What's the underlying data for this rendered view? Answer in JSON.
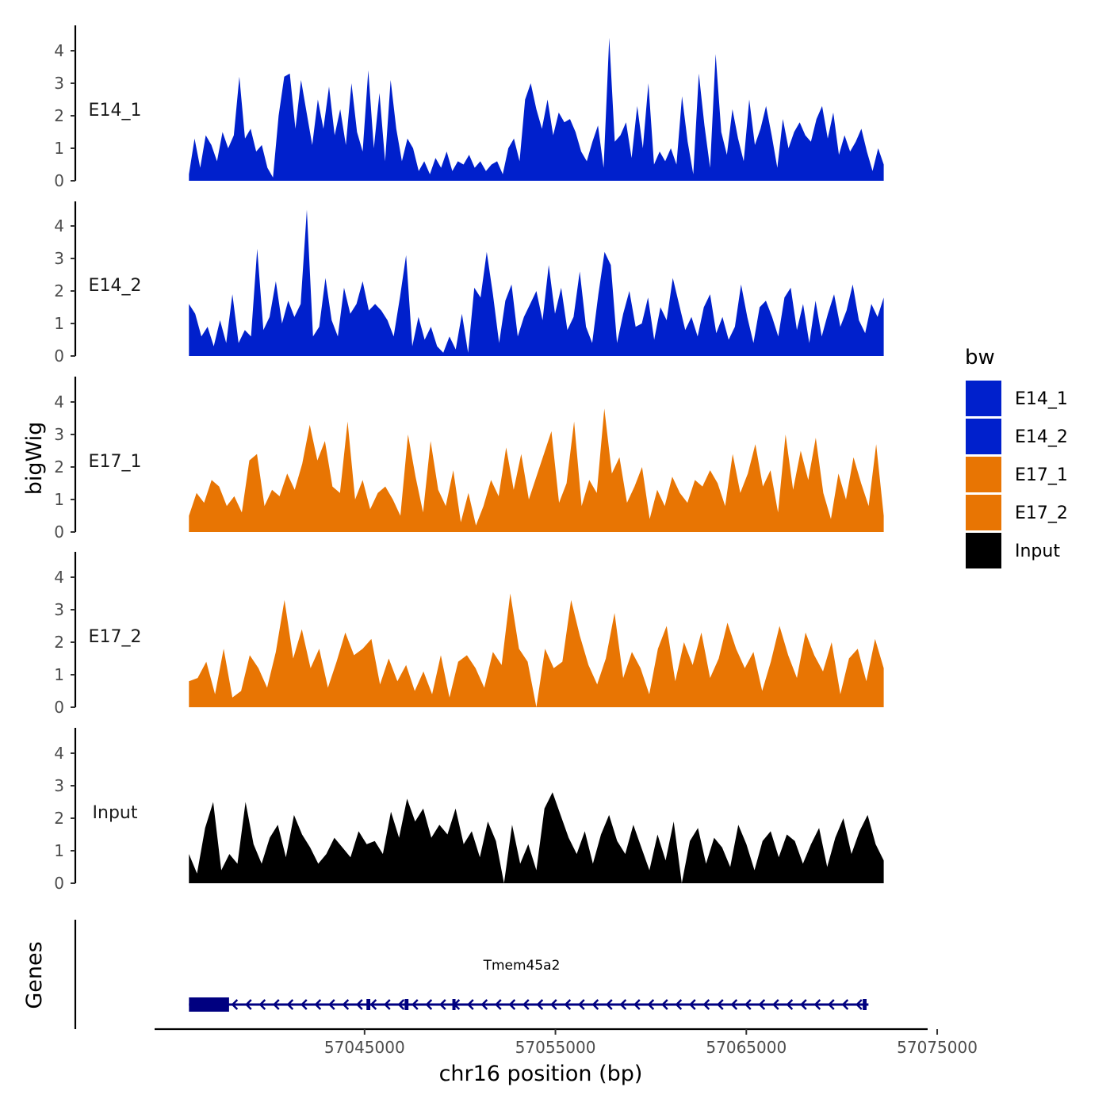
{
  "chart_data": {
    "type": "area",
    "title": "",
    "xlabel": "chr16 position (bp)",
    "ylabel": "bigWig",
    "genes_label": "Genes",
    "xlim": [
      57034000,
      57074500
    ],
    "x_ticks": [
      57045000,
      57055000,
      57065000,
      57075000
    ],
    "x_tick_labels": [
      "57045000",
      "57055000",
      "57065000",
      "57075000"
    ],
    "ylim": [
      0,
      4.8
    ],
    "y_ticks": [
      0,
      1,
      2,
      3,
      4
    ],
    "y_tick_labels": [
      "0",
      "1",
      "2",
      "3",
      "4"
    ],
    "region": {
      "start": 57035800,
      "end": 57072200
    },
    "legend": {
      "title": "bw",
      "entries": [
        {
          "label": "E14_1",
          "color": "#0020CC"
        },
        {
          "label": "E14_2",
          "color": "#0020CC"
        },
        {
          "label": "E17_1",
          "color": "#E87503"
        },
        {
          "label": "E17_2",
          "color": "#E87503"
        },
        {
          "label": "Input",
          "color": "#000000"
        }
      ]
    },
    "series": [
      {
        "name": "E14_1",
        "color": "#0020CC",
        "values": [
          0.2,
          1.3,
          0.4,
          1.4,
          1.1,
          0.6,
          1.5,
          1.0,
          1.4,
          3.2,
          1.3,
          1.6,
          0.9,
          1.1,
          0.4,
          0.1,
          2.0,
          3.2,
          3.3,
          1.6,
          3.1,
          2.1,
          1.1,
          2.5,
          1.6,
          2.9,
          1.4,
          2.2,
          1.1,
          3.0,
          1.5,
          0.9,
          3.4,
          1.0,
          2.7,
          0.6,
          3.1,
          1.6,
          0.6,
          1.3,
          1.0,
          0.3,
          0.6,
          0.2,
          0.7,
          0.4,
          0.9,
          0.3,
          0.6,
          0.5,
          0.8,
          0.4,
          0.6,
          0.3,
          0.5,
          0.6,
          0.2,
          1.0,
          1.3,
          0.6,
          2.5,
          3.0,
          2.2,
          1.6,
          2.5,
          1.4,
          2.1,
          1.8,
          1.9,
          1.5,
          0.9,
          0.6,
          1.2,
          1.7,
          0.4,
          4.4,
          1.2,
          1.4,
          1.8,
          0.7,
          2.3,
          1.0,
          3.0,
          0.5,
          0.9,
          0.6,
          1.0,
          0.5,
          2.6,
          1.2,
          0.2,
          3.3,
          1.7,
          0.4,
          3.9,
          1.5,
          0.8,
          2.2,
          1.3,
          0.6,
          2.5,
          1.1,
          1.6,
          2.3,
          1.4,
          0.4,
          1.9,
          1.0,
          1.5,
          1.8,
          1.4,
          1.2,
          1.9,
          2.3,
          1.3,
          2.1,
          0.8,
          1.4,
          0.9,
          1.2,
          1.6,
          0.9,
          0.3,
          1.0,
          0.5
        ]
      },
      {
        "name": "E14_2",
        "color": "#0020CC",
        "values": [
          1.6,
          1.3,
          0.6,
          0.9,
          0.3,
          1.1,
          0.4,
          1.9,
          0.4,
          0.8,
          0.6,
          3.3,
          0.8,
          1.2,
          2.3,
          1.0,
          1.7,
          1.2,
          1.6,
          4.5,
          0.6,
          0.9,
          2.4,
          1.1,
          0.6,
          2.1,
          1.3,
          1.6,
          2.3,
          1.4,
          1.6,
          1.4,
          1.1,
          0.6,
          1.8,
          3.1,
          0.3,
          1.2,
          0.5,
          0.9,
          0.3,
          0.1,
          0.6,
          0.2,
          1.3,
          0.1,
          2.1,
          1.8,
          3.2,
          1.9,
          0.4,
          1.7,
          2.2,
          0.6,
          1.2,
          1.6,
          2.0,
          1.1,
          2.8,
          1.3,
          2.1,
          0.8,
          1.2,
          2.6,
          0.9,
          0.4,
          1.9,
          3.2,
          2.8,
          0.4,
          1.3,
          2.0,
          0.9,
          1.0,
          1.8,
          0.5,
          1.5,
          1.1,
          2.4,
          1.6,
          0.8,
          1.2,
          0.6,
          1.5,
          1.9,
          0.7,
          1.2,
          0.5,
          0.9,
          2.2,
          1.2,
          0.4,
          1.5,
          1.7,
          1.2,
          0.6,
          1.8,
          2.1,
          0.8,
          1.6,
          0.4,
          1.7,
          0.6,
          1.3,
          1.9,
          0.9,
          1.4,
          2.2,
          1.1,
          0.7,
          1.6,
          1.2,
          1.8
        ]
      },
      {
        "name": "E17_1",
        "color": "#E87503",
        "values": [
          0.5,
          1.2,
          0.9,
          1.6,
          1.4,
          0.8,
          1.1,
          0.6,
          2.2,
          2.4,
          0.8,
          1.3,
          1.1,
          1.8,
          1.3,
          2.1,
          3.3,
          2.2,
          2.8,
          1.4,
          1.2,
          3.4,
          1.0,
          1.6,
          0.7,
          1.2,
          1.4,
          1.0,
          0.5,
          3.0,
          1.7,
          0.6,
          2.8,
          1.3,
          0.8,
          1.9,
          0.3,
          1.2,
          0.2,
          0.8,
          1.6,
          1.1,
          2.6,
          1.3,
          2.4,
          1.0,
          1.7,
          2.4,
          3.1,
          0.9,
          1.5,
          3.4,
          0.8,
          1.6,
          1.2,
          3.8,
          1.8,
          2.3,
          0.9,
          1.4,
          2.0,
          0.4,
          1.3,
          0.8,
          1.7,
          1.2,
          0.9,
          1.6,
          1.4,
          1.9,
          1.5,
          0.8,
          2.4,
          1.2,
          1.8,
          2.7,
          1.4,
          1.9,
          0.6,
          3.0,
          1.3,
          2.5,
          1.6,
          2.9,
          1.2,
          0.4,
          1.8,
          1.0,
          2.3,
          1.5,
          0.8,
          2.7,
          0.5
        ]
      },
      {
        "name": "E17_2",
        "color": "#E87503",
        "values": [
          0.8,
          0.9,
          1.4,
          0.4,
          1.8,
          0.3,
          0.5,
          1.6,
          1.2,
          0.6,
          1.7,
          3.3,
          1.5,
          2.4,
          1.2,
          1.8,
          0.6,
          1.4,
          2.3,
          1.6,
          1.8,
          2.1,
          0.7,
          1.5,
          0.8,
          1.3,
          0.5,
          1.1,
          0.4,
          1.6,
          0.3,
          1.4,
          1.6,
          1.2,
          0.6,
          1.7,
          1.3,
          3.5,
          1.8,
          1.4,
          0.0,
          1.8,
          1.2,
          1.4,
          3.3,
          2.2,
          1.3,
          0.7,
          1.5,
          2.9,
          0.9,
          1.7,
          1.2,
          0.4,
          1.8,
          2.5,
          0.8,
          2.0,
          1.3,
          2.3,
          0.9,
          1.5,
          2.6,
          1.8,
          1.2,
          1.7,
          0.5,
          1.4,
          2.5,
          1.6,
          0.9,
          2.3,
          1.6,
          1.1,
          2.0,
          0.4,
          1.5,
          1.8,
          0.8,
          2.1,
          1.2
        ]
      },
      {
        "name": "Input",
        "color": "#000000",
        "values": [
          0.9,
          0.3,
          1.7,
          2.5,
          0.4,
          0.9,
          0.6,
          2.5,
          1.2,
          0.6,
          1.4,
          1.8,
          0.8,
          2.1,
          1.5,
          1.1,
          0.6,
          0.9,
          1.4,
          1.1,
          0.8,
          1.6,
          1.2,
          1.3,
          0.9,
          2.2,
          1.4,
          2.6,
          1.9,
          2.3,
          1.4,
          1.8,
          1.5,
          2.3,
          1.2,
          1.6,
          0.8,
          1.9,
          1.3,
          0.0,
          1.8,
          0.6,
          1.2,
          0.4,
          2.3,
          2.8,
          2.1,
          1.4,
          0.9,
          1.6,
          0.6,
          1.5,
          2.1,
          1.3,
          0.9,
          1.8,
          1.1,
          0.4,
          1.5,
          0.7,
          1.9,
          0.0,
          1.3,
          1.7,
          0.6,
          1.4,
          1.1,
          0.5,
          1.8,
          1.2,
          0.4,
          1.3,
          1.6,
          0.8,
          1.5,
          1.3,
          0.6,
          1.2,
          1.7,
          0.5,
          1.4,
          2.0,
          0.9,
          1.6,
          2.1,
          1.2,
          0.7
        ]
      }
    ],
    "gene_track": {
      "name": "Tmem45a2",
      "strand": "-",
      "color": "#000080",
      "start": 57035800,
      "end": 57071400,
      "exons": [
        [
          57035800,
          57037900
        ],
        [
          57045100,
          57045300
        ],
        [
          57047100,
          57047300
        ],
        [
          57049600,
          57049700
        ],
        [
          57071100,
          57071300
        ]
      ]
    }
  }
}
